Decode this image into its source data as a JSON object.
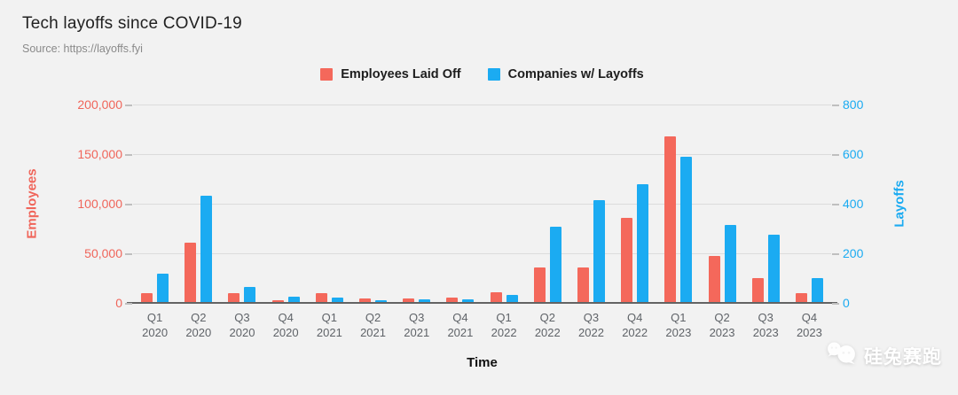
{
  "header": {
    "title": "Tech layoffs since COVID-19",
    "source": "Source: https://layoffs.fyi"
  },
  "watermark": {
    "text": "硅兔赛跑",
    "icon": "wechat-chat-bubbles-icon"
  },
  "colors": {
    "background": "#f2f2f2",
    "gridline": "#dcdcdc",
    "baseline": "#636363",
    "employees_red": "#f4685b",
    "companies_blue": "#1babf2"
  },
  "chart_data": {
    "type": "bar",
    "title": "Tech layoffs since COVID-19",
    "subtitle": "Source: https://layoffs.fyi",
    "xlabel": "Time",
    "legend_position": "top-center",
    "grid": true,
    "categories": [
      {
        "quarter": "Q1",
        "year": "2020"
      },
      {
        "quarter": "Q2",
        "year": "2020"
      },
      {
        "quarter": "Q3",
        "year": "2020"
      },
      {
        "quarter": "Q4",
        "year": "2020"
      },
      {
        "quarter": "Q1",
        "year": "2021"
      },
      {
        "quarter": "Q2",
        "year": "2021"
      },
      {
        "quarter": "Q3",
        "year": "2021"
      },
      {
        "quarter": "Q4",
        "year": "2021"
      },
      {
        "quarter": "Q1",
        "year": "2022"
      },
      {
        "quarter": "Q2",
        "year": "2022"
      },
      {
        "quarter": "Q3",
        "year": "2022"
      },
      {
        "quarter": "Q4",
        "year": "2022"
      },
      {
        "quarter": "Q1",
        "year": "2023"
      },
      {
        "quarter": "Q2",
        "year": "2023"
      },
      {
        "quarter": "Q3",
        "year": "2023"
      },
      {
        "quarter": "Q4",
        "year": "2023"
      }
    ],
    "series": [
      {
        "name": "Employees Laid Off",
        "axis": "left",
        "color": "#f4685b",
        "values": [
          9000,
          60000,
          9000,
          2000,
          8500,
          4000,
          3600,
          4200,
          10000,
          35000,
          35000,
          84500,
          167000,
          46000,
          24000,
          8500
        ]
      },
      {
        "name": "Companies w/ Layoffs",
        "axis": "right",
        "color": "#1babf2",
        "values": [
          115,
          430,
          60,
          22,
          18,
          8,
          10,
          10,
          30,
          305,
          410,
          475,
          585,
          310,
          270,
          95
        ]
      }
    ],
    "left_axis": {
      "label": "Employees",
      "color": "#f0655a",
      "min": 0,
      "max": 200000,
      "tick_labels": [
        "200,000",
        "150,000",
        "100,000",
        "50,000",
        "0"
      ]
    },
    "right_axis": {
      "label": "Layoffs",
      "color": "#1babf2",
      "min": 0,
      "max": 800,
      "tick_labels": [
        "800",
        "600",
        "400",
        "200",
        "0"
      ]
    }
  }
}
